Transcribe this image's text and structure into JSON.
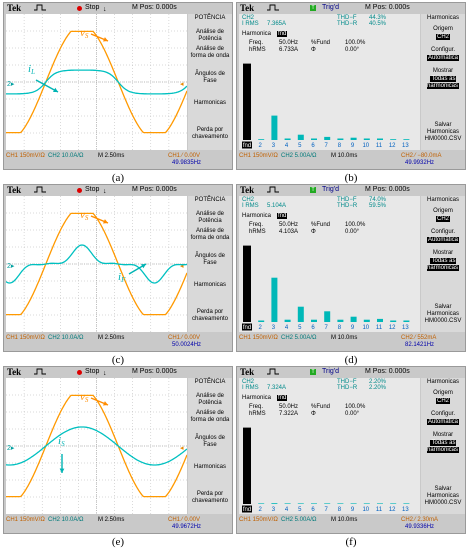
{
  "panels": [
    {
      "id": "a",
      "label": "(a)",
      "type": "waveform",
      "header": {
        "brand": "Tek",
        "status": "Stop",
        "mpos": "M Pos: 0.000s"
      },
      "menu": [
        {
          "label": "POTÊNCIA",
          "highlight": false
        },
        {
          "label": "Análise de Potência",
          "highlight": false
        },
        {
          "label": "Análise de forma de onda",
          "highlight": false
        },
        {
          "label": "Ângulos de Fase",
          "highlight": false
        },
        {
          "label": "Harmonicas",
          "highlight": false
        },
        {
          "label": "Perda por chaveamento",
          "highlight": false
        }
      ],
      "footer": {
        "ch1": "CH1  150mV/Ω",
        "ch2": "CH2  10.0A/Ω",
        "time": "M 2.50ms",
        "trig": "CH1 ⁄ 0.00V",
        "freq": "49.9835Hz"
      },
      "annotations": [
        {
          "text": "vS",
          "main": "v",
          "sub": "S",
          "color": "#ff8c00"
        },
        {
          "text": "iL",
          "main": "i",
          "sub": "L",
          "color": "#00b4b4"
        }
      ],
      "colors": {
        "voltage": "#ff9900",
        "current": "#00c0c0"
      },
      "waves": {
        "v_amp": 0.8,
        "i_amp": 0.2,
        "i_shape": "rect-soft",
        "v_phase": 0.0
      }
    },
    {
      "id": "b",
      "label": "(b)",
      "type": "harmonics",
      "header": {
        "brand": "Tek",
        "status": "Trig'd",
        "mpos": "M Pos: 0.000s"
      },
      "info": {
        "ch": "CH2",
        "irms_label": "I RMS",
        "irms": "7.365A",
        "thdf_label": "THD−F",
        "thdf": "44.3%",
        "thdr_label": "THD−R",
        "thdr": "40.5%",
        "harm_label": "Harmonica",
        "harm_sel": "fnd",
        "freq_label": "Freq.",
        "freq": "50.0Hz",
        "pfund_label": "%Fund",
        "pfund": "100.0%",
        "hrms_label": "hRMS",
        "hrms": "6.733A",
        "phi_label": "Φ",
        "phi": "0.00°"
      },
      "menu": [
        {
          "label": "Harmonicas",
          "highlight": false
        },
        {
          "label": "Origem",
          "highlight": false
        },
        {
          "label": "CH2",
          "highlight": true
        },
        {
          "label": "Configur.",
          "highlight": false
        },
        {
          "label": "Automática",
          "highlight": true
        },
        {
          "label": "Mostrar",
          "highlight": false
        },
        {
          "label": "Todas as harmonicas",
          "highlight": true
        },
        {
          "label": "Salvar Harmonicas",
          "highlight": false
        },
        {
          "label": "HM0000.CSV",
          "highlight": false
        }
      ],
      "axis": [
        "fnd",
        "2",
        "3",
        "4",
        "5",
        "6",
        "7",
        "8",
        "9",
        "10",
        "11",
        "12",
        "13"
      ],
      "footer": {
        "ch1": "CH1  150mV/Ω",
        "ch2": "CH2  5.00A/Ω",
        "time": "M 10.0ms",
        "trig": "CH2 ⁄ −80.0mA",
        "freq": "49.9932Hz"
      },
      "chart_data": {
        "type": "bar",
        "categories": [
          "fnd",
          "2",
          "3",
          "4",
          "5",
          "6",
          "7",
          "8",
          "9",
          "10",
          "11",
          "12",
          "13"
        ],
        "values": [
          100,
          1,
          32,
          2,
          7,
          2,
          4,
          2,
          3,
          2,
          2,
          1,
          1
        ],
        "ylim": [
          0,
          110
        ]
      }
    },
    {
      "id": "c",
      "label": "(c)",
      "type": "waveform",
      "header": {
        "brand": "Tek",
        "status": "Stop",
        "mpos": "M Pos: 0.000s"
      },
      "menu": [
        {
          "label": "POTÊNCIA",
          "highlight": false
        },
        {
          "label": "Análise de Potência",
          "highlight": false
        },
        {
          "label": "Análise de forma de onda",
          "highlight": false
        },
        {
          "label": "Ângulos de Fase",
          "highlight": false
        },
        {
          "label": "Harmonicas",
          "highlight": false
        },
        {
          "label": "Perda por chaveamento",
          "highlight": false
        }
      ],
      "footer": {
        "ch1": "CH1  150mV/Ω",
        "ch2": "CH2  10.0A/Ω",
        "time": "M 2.50ms",
        "trig": "CH1 ⁄ 0.00V",
        "freq": "50.0024Hz"
      },
      "annotations": [
        {
          "text": "vS",
          "main": "v",
          "sub": "S",
          "color": "#ff8c00"
        },
        {
          "text": "iF",
          "main": "i",
          "sub": "F",
          "color": "#00b4b4"
        }
      ],
      "colors": {
        "voltage": "#ff9900",
        "current": "#00c0c0"
      },
      "waves": {
        "v_amp": 0.8,
        "i_amp": 0.2,
        "i_shape": "harmonic3",
        "v_phase": 0.0
      }
    },
    {
      "id": "d",
      "label": "(d)",
      "type": "harmonics",
      "header": {
        "brand": "Tek",
        "status": "Trig'd",
        "mpos": "M Pos: 0.000s"
      },
      "info": {
        "ch": "CH2",
        "irms_label": "I RMS",
        "irms": "5.104A",
        "thdf_label": "THD−F",
        "thdf": "74.0%",
        "thdr_label": "THD−R",
        "thdr": "59.5%",
        "harm_label": "Harmonica",
        "harm_sel": "fnd",
        "freq_label": "Freq.",
        "freq": "50.0Hz",
        "pfund_label": "%Fund",
        "pfund": "100.0%",
        "hrms_label": "hRMS",
        "hrms": "4.103A",
        "phi_label": "Φ",
        "phi": "0.00°"
      },
      "menu": [
        {
          "label": "Harmonicas",
          "highlight": false
        },
        {
          "label": "Origem",
          "highlight": false
        },
        {
          "label": "CH2",
          "highlight": true
        },
        {
          "label": "Configur.",
          "highlight": false
        },
        {
          "label": "Automática",
          "highlight": true
        },
        {
          "label": "Mostrar",
          "highlight": false
        },
        {
          "label": "Todas as harmonicas",
          "highlight": true
        },
        {
          "label": "Salvar Harmonicas",
          "highlight": false
        },
        {
          "label": "HM0000.CSV",
          "highlight": false
        }
      ],
      "axis": [
        "fnd",
        "2",
        "3",
        "4",
        "5",
        "6",
        "7",
        "8",
        "9",
        "10",
        "11",
        "12",
        "13"
      ],
      "footer": {
        "ch1": "CH1  150mV/Ω",
        "ch2": "CH2  5.00A/Ω",
        "time": "M 10.0ms",
        "trig": "CH2 ⁄ 552mA",
        "freq": "82.1421Hz"
      },
      "chart_data": {
        "type": "bar",
        "categories": [
          "fnd",
          "2",
          "3",
          "4",
          "5",
          "6",
          "7",
          "8",
          "9",
          "10",
          "11",
          "12",
          "13"
        ],
        "values": [
          100,
          2,
          58,
          3,
          20,
          3,
          14,
          3,
          7,
          3,
          4,
          2,
          2
        ],
        "ylim": [
          0,
          110
        ]
      }
    },
    {
      "id": "e",
      "label": "(e)",
      "type": "waveform",
      "header": {
        "brand": "Tek",
        "status": "Stop",
        "mpos": "M Pos: 0.000s"
      },
      "menu": [
        {
          "label": "POTÊNCIA",
          "highlight": false
        },
        {
          "label": "Análise de Potência",
          "highlight": false
        },
        {
          "label": "Análise de forma de onda",
          "highlight": false
        },
        {
          "label": "Ângulos de Fase",
          "highlight": false
        },
        {
          "label": "Harmonicas",
          "highlight": false
        },
        {
          "label": "Perda por chaveamento",
          "highlight": false
        }
      ],
      "footer": {
        "ch1": "CH1  150mV/Ω",
        "ch2": "CH2  10.0A/Ω",
        "time": "M 2.50ms",
        "trig": "CH1 ⁄ 0.00V",
        "freq": "49.9672Hz"
      },
      "annotations": [
        {
          "text": "vS",
          "main": "v",
          "sub": "S",
          "color": "#ff8c00"
        },
        {
          "text": "iS",
          "main": "i",
          "sub": "S",
          "color": "#00b4b4"
        }
      ],
      "colors": {
        "voltage": "#ff9900",
        "current": "#00c0c0"
      },
      "waves": {
        "v_amp": 0.8,
        "i_amp": 0.28,
        "i_shape": "sine",
        "v_phase": 0.0
      }
    },
    {
      "id": "f",
      "label": "(f)",
      "type": "harmonics",
      "header": {
        "brand": "Tek",
        "status": "Trig'd",
        "mpos": "M Pos: 0.000s"
      },
      "info": {
        "ch": "CH2",
        "irms_label": "I RMS",
        "irms": "7.324A",
        "thdf_label": "THD−F",
        "thdf": "2.20%",
        "thdr_label": "THD−R",
        "thdr": "2.20%",
        "harm_label": "Harmonica",
        "harm_sel": "fnd",
        "freq_label": "Freq.",
        "freq": "50.0Hz",
        "pfund_label": "%Fund",
        "pfund": "100.0%",
        "hrms_label": "hRMS",
        "hrms": "7.322A",
        "phi_label": "Φ",
        "phi": "0.00°"
      },
      "menu": [
        {
          "label": "Harmonicas",
          "highlight": false
        },
        {
          "label": "Origem",
          "highlight": false
        },
        {
          "label": "CH2",
          "highlight": true
        },
        {
          "label": "Configur.",
          "highlight": false
        },
        {
          "label": "Automática",
          "highlight": true
        },
        {
          "label": "Mostrar",
          "highlight": false
        },
        {
          "label": "Todas as harmonicas",
          "highlight": true
        },
        {
          "label": "Salvar Harmonicas",
          "highlight": false
        },
        {
          "label": "HM0000.CSV",
          "highlight": false
        }
      ],
      "axis": [
        "fnd",
        "2",
        "3",
        "4",
        "5",
        "6",
        "7",
        "8",
        "9",
        "10",
        "11",
        "12",
        "13"
      ],
      "footer": {
        "ch1": "CH1  150mV/Ω",
        "ch2": "CH2  5.00A/Ω",
        "time": "M 10.0ms",
        "trig": "CH2 ⁄ 2.30mA",
        "freq": "49.9336Hz"
      },
      "chart_data": {
        "type": "bar",
        "categories": [
          "fnd",
          "2",
          "3",
          "4",
          "5",
          "6",
          "7",
          "8",
          "9",
          "10",
          "11",
          "12",
          "13"
        ],
        "values": [
          100,
          0.3,
          1,
          0.3,
          0.5,
          0.3,
          0.3,
          0.2,
          0.2,
          0.2,
          0.2,
          0.2,
          0.2
        ],
        "ylim": [
          0,
          110
        ]
      }
    }
  ]
}
